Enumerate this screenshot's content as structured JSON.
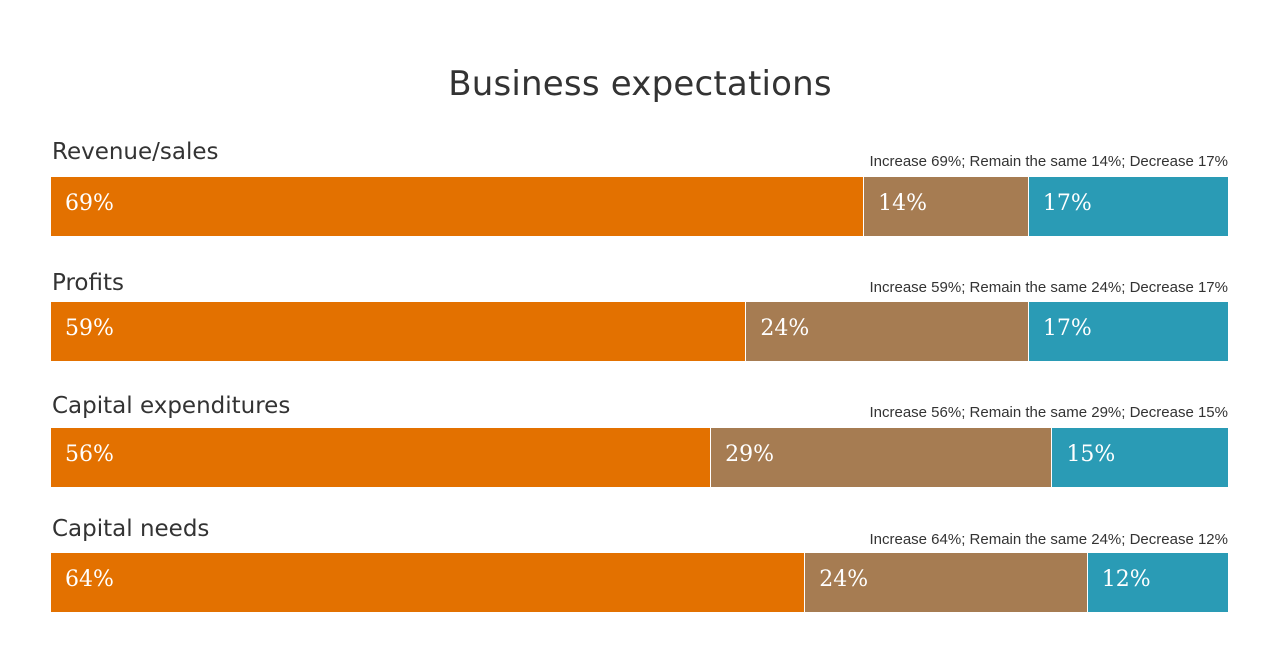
{
  "chart_data": {
    "type": "bar",
    "orientation": "horizontal",
    "stacked": true,
    "title": "Business expectations",
    "categories": [
      "Revenue/sales",
      "Profits",
      "Capital expenditures",
      "Capital needs"
    ],
    "series": [
      {
        "name": "Increase",
        "color": "#e37100",
        "values": [
          69,
          59,
          56,
          64
        ]
      },
      {
        "name": "Remain the same",
        "color": "#a67c52",
        "values": [
          14,
          24,
          29,
          24
        ]
      },
      {
        "name": "Decrease",
        "color": "#2a9bb5",
        "values": [
          17,
          17,
          15,
          12
        ]
      }
    ],
    "summaries": [
      "Increase 69%; Remain the same 14%; Decrease 17%",
      "Increase 59%; Remain the same 24%; Decrease 17%",
      "Increase 56%; Remain the same 29%; Decrease 15%",
      "Increase 64%; Remain the same 24%; Decrease 12%"
    ],
    "value_suffix": "%",
    "xlim": [
      0,
      100
    ],
    "grid": false
  }
}
